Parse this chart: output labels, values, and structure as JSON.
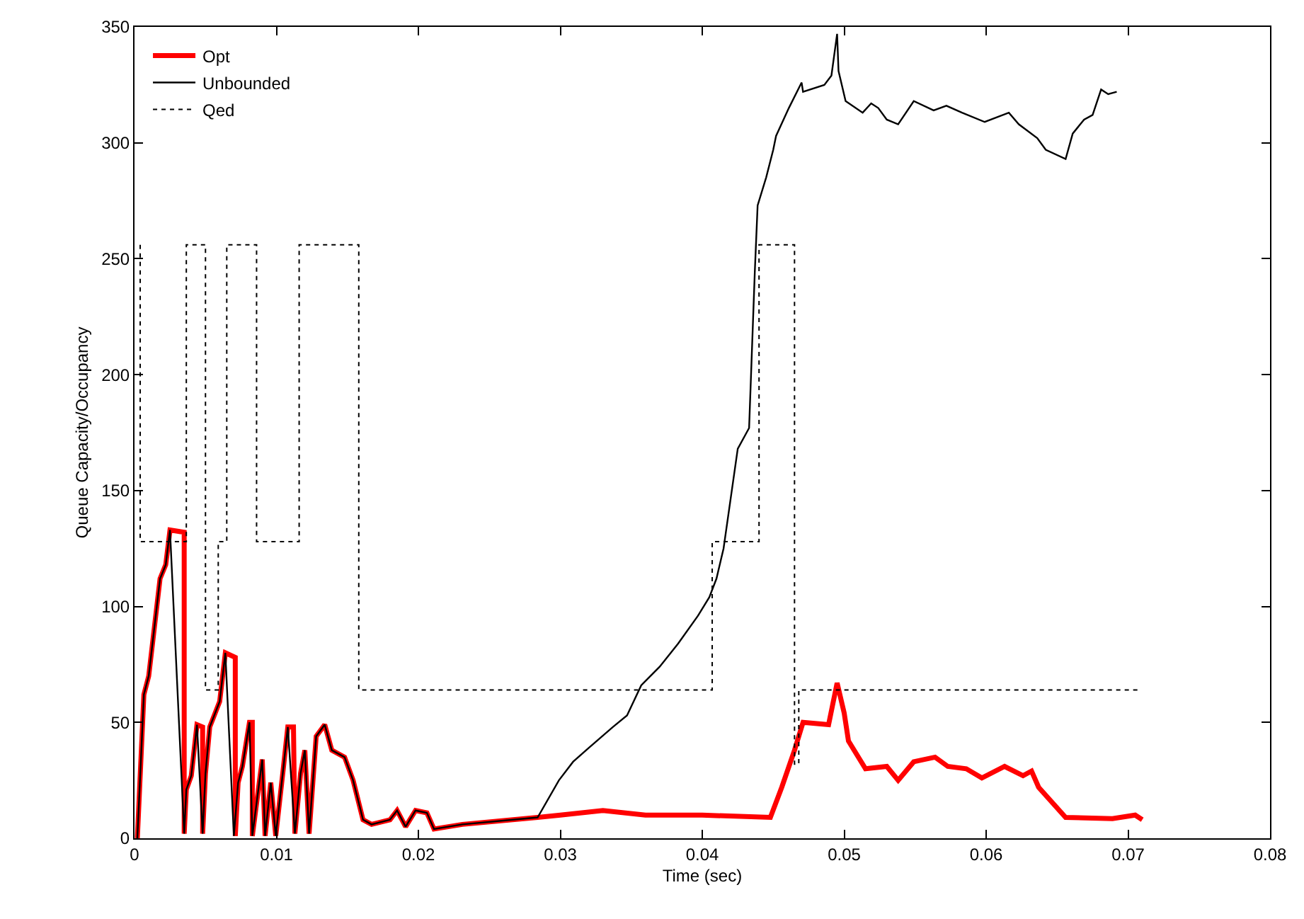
{
  "chart_data": {
    "type": "line",
    "xlabel": "Time (sec)",
    "ylabel": "Queue Capacity/Occupancy",
    "xlim": [
      0,
      0.08
    ],
    "xticks": [
      0,
      0.01,
      0.02,
      0.03,
      0.04,
      0.05,
      0.06,
      0.07,
      0.08
    ],
    "ylim": [
      0,
      350
    ],
    "yticks": [
      0,
      50,
      100,
      150,
      200,
      250,
      300,
      350
    ],
    "legend": "top left",
    "marker": "none",
    "series": [
      {
        "name": "Opt",
        "color": "#ff0000",
        "line_style": "solid",
        "x": [
          0.0002,
          0.00066,
          0.001,
          0.0018,
          0.0022,
          0.0025,
          0.0035,
          0.0035,
          0.00365,
          0.004,
          0.0044,
          0.0048,
          0.0048,
          0.005,
          0.0053,
          0.006,
          0.0064,
          0.0071,
          0.0071,
          0.0073,
          0.0076,
          0.0081,
          0.0083,
          0.0083,
          0.009,
          0.0092,
          0.0096,
          0.00995,
          0.0105,
          0.0108,
          0.0112,
          0.0113,
          0.0117,
          0.012,
          0.0123,
          0.0128,
          0.0134,
          0.0139,
          0.0148,
          0.0154,
          0.0161,
          0.0167,
          0.018,
          0.0185,
          0.0191,
          0.0198,
          0.0206,
          0.0211,
          0.0231,
          0.0284,
          0.03,
          0.033,
          0.036,
          0.04,
          0.0448,
          0.0456,
          0.0465,
          0.0471,
          0.0489,
          0.0495,
          0.05,
          0.0503,
          0.0515,
          0.053,
          0.0538,
          0.0549,
          0.0564,
          0.0573,
          0.0586,
          0.0597,
          0.0613,
          0.0626,
          0.0632,
          0.0637,
          0.0656,
          0.0689,
          0.0705,
          0.071
        ],
        "values": [
          0,
          62,
          70,
          112,
          118,
          133,
          132,
          2,
          21,
          27,
          49,
          48,
          2,
          28,
          48,
          59,
          80,
          78,
          1,
          24,
          31,
          50,
          50,
          1,
          34,
          1,
          24,
          1,
          31,
          48,
          48,
          2,
          28,
          38,
          2,
          44,
          49,
          38,
          35,
          25,
          8,
          6,
          8,
          12,
          5,
          12,
          11,
          4,
          6,
          9,
          10,
          12,
          10,
          10,
          9,
          22,
          38,
          50,
          49,
          67,
          54,
          42,
          30,
          31,
          25,
          33,
          35,
          31,
          30,
          26,
          31,
          27,
          29,
          22,
          9,
          8.5,
          10,
          8
        ]
      },
      {
        "name": "Unbounded",
        "color": "#000000",
        "line_style": "solid",
        "x": [
          0.0002,
          0.00066,
          0.001,
          0.0018,
          0.0022,
          0.0025,
          0.0035,
          0.00365,
          0.004,
          0.0044,
          0.0048,
          0.005,
          0.0053,
          0.006,
          0.0064,
          0.007,
          0.0073,
          0.0076,
          0.0081,
          0.0083,
          0.009,
          0.0092,
          0.0096,
          0.00995,
          0.0105,
          0.0108,
          0.0113,
          0.0117,
          0.012,
          0.0123,
          0.0128,
          0.0134,
          0.0139,
          0.0148,
          0.0154,
          0.0161,
          0.0167,
          0.018,
          0.0185,
          0.0191,
          0.0198,
          0.0206,
          0.0211,
          0.0231,
          0.0284,
          0.0299,
          0.0309,
          0.032,
          0.0337,
          0.0347,
          0.0357,
          0.037,
          0.0383,
          0.0397,
          0.0405,
          0.041,
          0.0415,
          0.0425,
          0.0433,
          0.0437,
          0.0439,
          0.0445,
          0.045,
          0.0452,
          0.0461,
          0.047,
          0.0471,
          0.0486,
          0.0491,
          0.0495,
          0.0496,
          0.0501,
          0.0513,
          0.0519,
          0.0524,
          0.053,
          0.0538,
          0.0549,
          0.0563,
          0.0572,
          0.0583,
          0.0599,
          0.0616,
          0.0623,
          0.0636,
          0.0642,
          0.0656,
          0.0661,
          0.0669,
          0.0675,
          0.0681,
          0.0686,
          0.0692
        ],
        "values": [
          0,
          62,
          70,
          112,
          118,
          133,
          2,
          21,
          27,
          49,
          2,
          28,
          48,
          59,
          80,
          1,
          24,
          31,
          50,
          1,
          34,
          1,
          24,
          1,
          31,
          48,
          2,
          28,
          38,
          2,
          44,
          49,
          38,
          35,
          25,
          8,
          6,
          8,
          12,
          5,
          12,
          11,
          4,
          6,
          9,
          25,
          33,
          39,
          48,
          53,
          66,
          74,
          84,
          96,
          104,
          112,
          125,
          168,
          177,
          244,
          273,
          285,
          297,
          303,
          315,
          326,
          322,
          325,
          329,
          347,
          331,
          318,
          313,
          317,
          315,
          310,
          308,
          318,
          314,
          316,
          313,
          309,
          313,
          308,
          302,
          297,
          293,
          304,
          310,
          312,
          323,
          321,
          322
        ]
      },
      {
        "name": "Qed",
        "type": "step",
        "color": "#000000",
        "line_style": "dotted",
        "x": [
          0.0004,
          0.0004,
          0.00365,
          0.005,
          0.0059,
          0.0065,
          0.0086,
          0.0116,
          0.0158,
          0.0407,
          0.044,
          0.0465,
          0.0468,
          0.0709
        ],
        "values": [
          256,
          128,
          256,
          64,
          128,
          256,
          128,
          256,
          64,
          128,
          256,
          32,
          64,
          64
        ]
      }
    ]
  }
}
